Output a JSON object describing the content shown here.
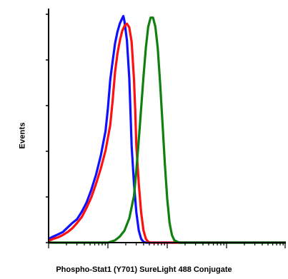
{
  "chart_data": {
    "type": "line",
    "xlabel": "Phospho-Stat1 (Y701) SureLight 488 Conjugate",
    "ylabel": "Events",
    "x_scale": "log",
    "grid": false,
    "legend": "none",
    "series": [
      {
        "color": "#1010ff",
        "points": [
          [
            0.0,
            5
          ],
          [
            0.02,
            8
          ],
          [
            0.04,
            11
          ],
          [
            0.06,
            14
          ],
          [
            0.08,
            20
          ],
          [
            0.1,
            26
          ],
          [
            0.12,
            31
          ],
          [
            0.14,
            41
          ],
          [
            0.16,
            53
          ],
          [
            0.18,
            70
          ],
          [
            0.2,
            90
          ],
          [
            0.22,
            115
          ],
          [
            0.24,
            148
          ],
          [
            0.25,
            178
          ],
          [
            0.26,
            216
          ],
          [
            0.27,
            240
          ],
          [
            0.28,
            264
          ],
          [
            0.29,
            279
          ],
          [
            0.3,
            290
          ],
          [
            0.31,
            297
          ],
          [
            0.315,
            300
          ],
          [
            0.32,
            293
          ],
          [
            0.33,
            268
          ],
          [
            0.34,
            218
          ],
          [
            0.345,
            176
          ],
          [
            0.35,
            128
          ],
          [
            0.36,
            78
          ],
          [
            0.37,
            40
          ],
          [
            0.38,
            16
          ],
          [
            0.39,
            5
          ],
          [
            0.4,
            1
          ],
          [
            0.41,
            0
          ],
          [
            1.0,
            0
          ]
        ]
      },
      {
        "color": "#ff1010",
        "points": [
          [
            0.0,
            2
          ],
          [
            0.02,
            5
          ],
          [
            0.04,
            7
          ],
          [
            0.06,
            10
          ],
          [
            0.08,
            14
          ],
          [
            0.1,
            19
          ],
          [
            0.12,
            26
          ],
          [
            0.14,
            34
          ],
          [
            0.16,
            46
          ],
          [
            0.18,
            60
          ],
          [
            0.2,
            78
          ],
          [
            0.22,
            98
          ],
          [
            0.24,
            122
          ],
          [
            0.26,
            156
          ],
          [
            0.27,
            188
          ],
          [
            0.28,
            226
          ],
          [
            0.29,
            250
          ],
          [
            0.3,
            267
          ],
          [
            0.31,
            280
          ],
          [
            0.32,
            287
          ],
          [
            0.33,
            290
          ],
          [
            0.34,
            285
          ],
          [
            0.35,
            266
          ],
          [
            0.36,
            216
          ],
          [
            0.365,
            176
          ],
          [
            0.37,
            128
          ],
          [
            0.38,
            78
          ],
          [
            0.39,
            40
          ],
          [
            0.4,
            16
          ],
          [
            0.41,
            5
          ],
          [
            0.42,
            1
          ],
          [
            0.43,
            0
          ],
          [
            1.0,
            0
          ]
        ]
      },
      {
        "color": "#108010",
        "points": [
          [
            0.0,
            0
          ],
          [
            0.2,
            0
          ],
          [
            0.25,
            0
          ],
          [
            0.28,
            3
          ],
          [
            0.3,
            8
          ],
          [
            0.32,
            16
          ],
          [
            0.34,
            32
          ],
          [
            0.36,
            62
          ],
          [
            0.37,
            96
          ],
          [
            0.38,
            136
          ],
          [
            0.39,
            178
          ],
          [
            0.4,
            220
          ],
          [
            0.41,
            258
          ],
          [
            0.42,
            286
          ],
          [
            0.43,
            298
          ],
          [
            0.44,
            298
          ],
          [
            0.45,
            286
          ],
          [
            0.46,
            258
          ],
          [
            0.47,
            212
          ],
          [
            0.48,
            158
          ],
          [
            0.49,
            104
          ],
          [
            0.5,
            58
          ],
          [
            0.51,
            26
          ],
          [
            0.52,
            10
          ],
          [
            0.53,
            3
          ],
          [
            0.55,
            0
          ],
          [
            1.0,
            0
          ]
        ]
      }
    ]
  }
}
